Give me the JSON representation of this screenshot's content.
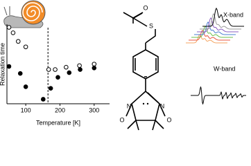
{
  "chart_data": {
    "type": "scatter",
    "xlabel": "Temperature [K]",
    "ylabel": "Relaxation time",
    "xlim": [
      45,
      345
    ],
    "ylim": [
      0,
      10
    ],
    "xticks": [
      100,
      200,
      300
    ],
    "vline": 165,
    "series": [
      {
        "marker": "open",
        "color": "#000000",
        "x": [
          51,
          63,
          78,
          100,
          167,
          186,
          218,
          257,
          300
        ],
        "values": [
          9.6,
          8.9,
          7.8,
          7.1,
          4.2,
          4.2,
          4.5,
          4.7,
          4.9
        ]
      },
      {
        "marker": "filled",
        "color": "#000000",
        "x": [
          51,
          84,
          100,
          151,
          173,
          194,
          227,
          259,
          300
        ],
        "values": [
          4.6,
          3.7,
          2.0,
          0.4,
          1.8,
          3.2,
          3.8,
          4.2,
          4.4
        ]
      }
    ]
  },
  "figure": {
    "x_band": "X-band",
    "w_band": "W-band",
    "atoms": {
      "carbonyl_o": "O",
      "sulfur": "S",
      "n_left": "N",
      "n_right": "N",
      "o_left": "O",
      "o_right": "O"
    }
  }
}
